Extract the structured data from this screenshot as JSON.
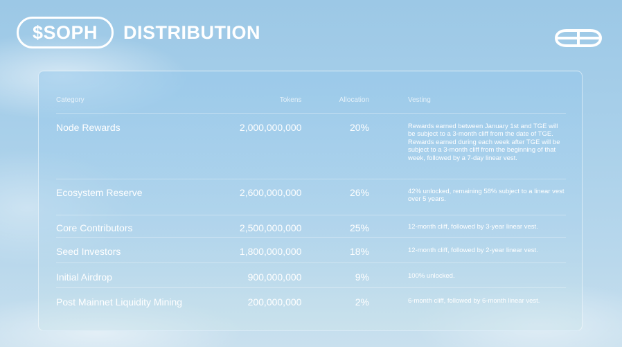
{
  "header": {
    "ticker": "$SOPH",
    "title": "DISTRIBUTION"
  },
  "logo": {
    "icon": "sophon-logo-icon",
    "color": "#ffffff"
  },
  "table": {
    "columns": {
      "category": "Category",
      "tokens": "Tokens",
      "allocation": "Allocation",
      "vesting": "Vesting"
    },
    "rows": [
      {
        "category": "Node Rewards",
        "tokens": "2,000,000,000",
        "allocation": "20%",
        "vesting": "Rewards earned between January 1st and TGE will be subject to a 3-month cliff from the date of TGE. Rewards earned during each week after TGE will be subject to a 3-month cliff from the beginning of that week, followed by a 7-day linear vest."
      },
      {
        "category": "Ecosystem Reserve",
        "tokens": "2,600,000,000",
        "allocation": "26%",
        "vesting": "42% unlocked, remaining 58% subject to a linear vest over 5 years."
      },
      {
        "category": "Core Contributors",
        "tokens": "2,500,000,000",
        "allocation": "25%",
        "vesting": "12-month cliff, followed by 3-year linear vest."
      },
      {
        "category": "Seed Investors",
        "tokens": "1,800,000,000",
        "allocation": "18%",
        "vesting": "12-month cliff, followed by 2-year linear vest."
      },
      {
        "category": "Initial Airdrop",
        "tokens": "900,000,000",
        "allocation": "9%",
        "vesting": "100% unlocked."
      },
      {
        "category": "Post Mainnet Liquidity Mining",
        "tokens": "200,000,000",
        "allocation": "2%",
        "vesting": "6-month cliff, followed by 6-month linear vest."
      }
    ]
  }
}
